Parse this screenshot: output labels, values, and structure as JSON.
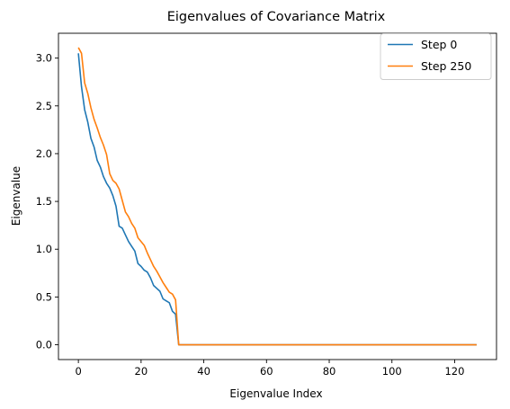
{
  "chart_data": {
    "type": "line",
    "title": "Eigenvalues of Covariance Matrix",
    "xlabel": "Eigenvalue Index",
    "ylabel": "Eigenvalue",
    "xlim": [
      -6.35,
      133.35
    ],
    "ylim": [
      -0.155,
      3.26
    ],
    "xticks": [
      0,
      20,
      40,
      60,
      80,
      100,
      120
    ],
    "yticks": [
      0.0,
      0.5,
      1.0,
      1.5,
      2.0,
      2.5,
      3.0
    ],
    "xtick_labels": [
      "0",
      "20",
      "40",
      "60",
      "80",
      "100",
      "120"
    ],
    "ytick_labels": [
      "0.0",
      "0.5",
      "1.0",
      "1.5",
      "2.0",
      "2.5",
      "3.0"
    ],
    "grid": false,
    "legend_position": "top-right",
    "series": [
      {
        "name": "Step 0",
        "color": "#1f77b4",
        "x": [
          0,
          1,
          2,
          3,
          4,
          5,
          6,
          7,
          8,
          9,
          10,
          11,
          12,
          13,
          14,
          15,
          16,
          17,
          18,
          19,
          20,
          21,
          22,
          23,
          24,
          25,
          26,
          27,
          28,
          29,
          30,
          31,
          32,
          127
        ],
        "values": [
          3.05,
          2.7,
          2.46,
          2.33,
          2.16,
          2.07,
          1.93,
          1.86,
          1.76,
          1.69,
          1.64,
          1.56,
          1.45,
          1.24,
          1.22,
          1.15,
          1.08,
          1.03,
          0.98,
          0.85,
          0.82,
          0.78,
          0.76,
          0.7,
          0.62,
          0.59,
          0.56,
          0.48,
          0.46,
          0.44,
          0.35,
          0.32,
          0.0,
          0.0
        ]
      },
      {
        "name": "Step 250",
        "color": "#ff7f0e",
        "x": [
          0,
          1,
          2,
          3,
          4,
          5,
          6,
          7,
          8,
          9,
          10,
          11,
          12,
          13,
          14,
          15,
          16,
          17,
          18,
          19,
          20,
          21,
          22,
          23,
          24,
          25,
          26,
          27,
          28,
          29,
          30,
          31,
          32,
          127
        ],
        "values": [
          3.11,
          3.05,
          2.74,
          2.63,
          2.48,
          2.36,
          2.27,
          2.17,
          2.09,
          1.99,
          1.79,
          1.72,
          1.69,
          1.63,
          1.51,
          1.39,
          1.34,
          1.27,
          1.22,
          1.12,
          1.08,
          1.04,
          0.96,
          0.89,
          0.82,
          0.77,
          0.71,
          0.65,
          0.6,
          0.55,
          0.53,
          0.47,
          0.0,
          0.0
        ]
      }
    ]
  }
}
